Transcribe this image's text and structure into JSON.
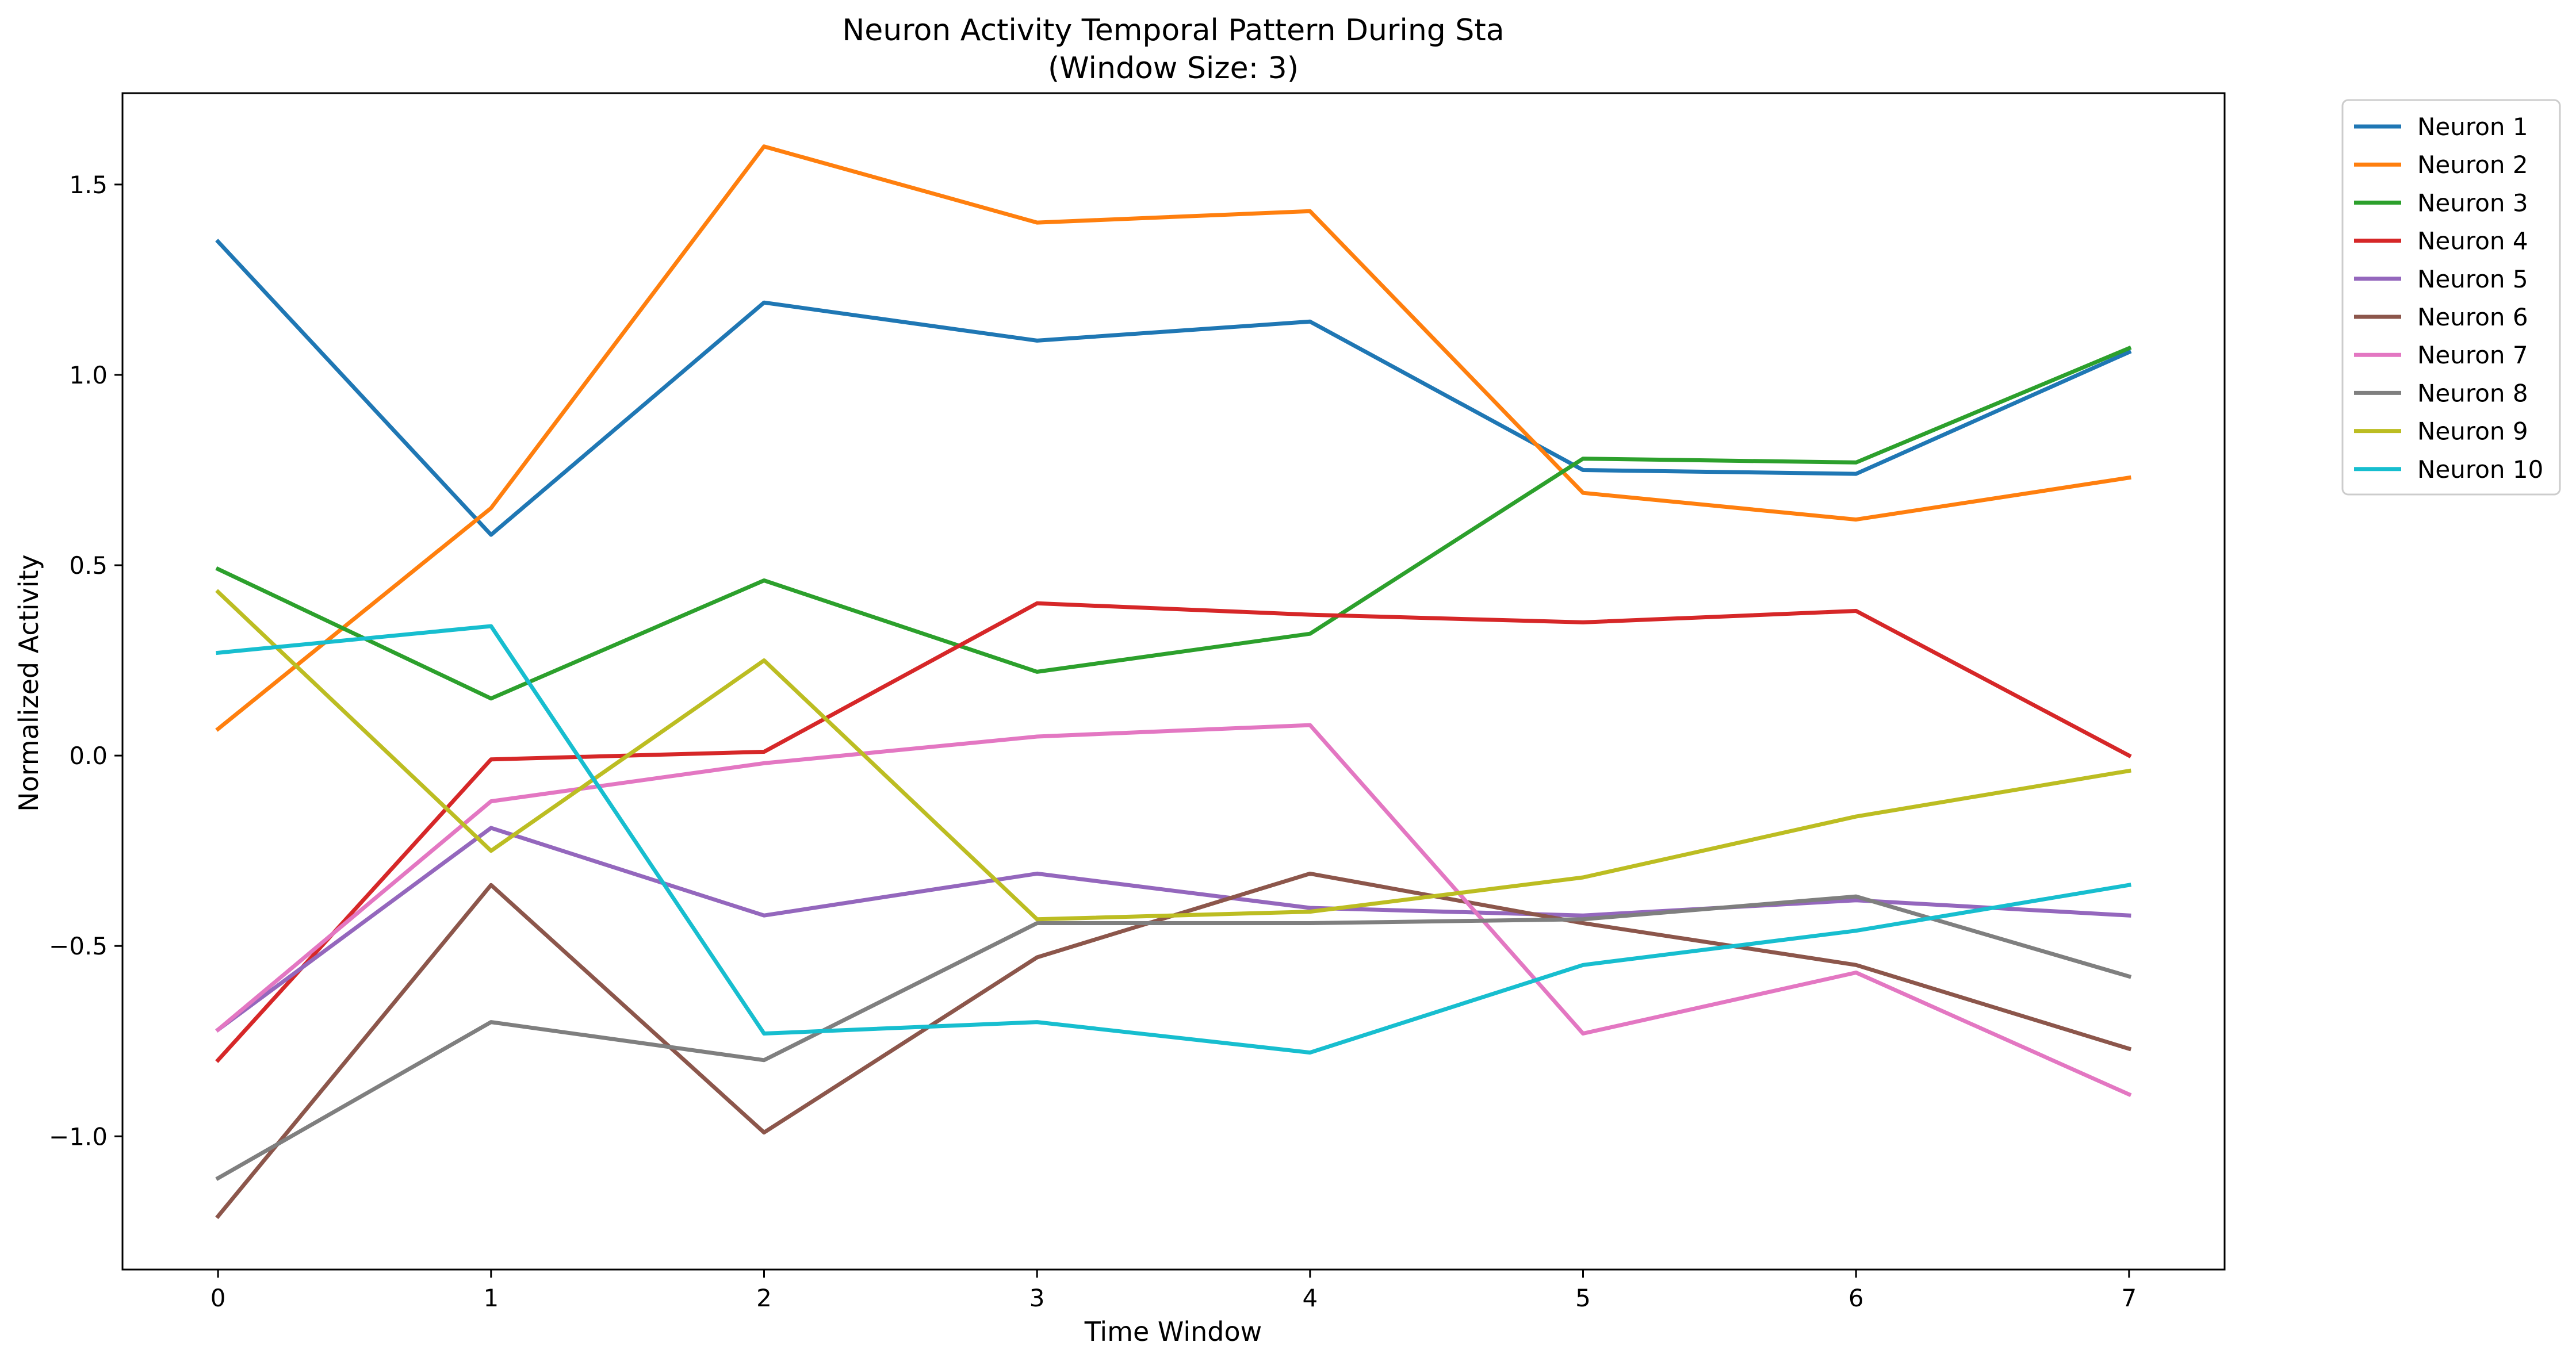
{
  "chart_data": {
    "type": "line",
    "title": "Neuron Activity Temporal Pattern During Sta",
    "subtitle": "(Window Size: 3)",
    "xlabel": "Time Window",
    "ylabel": "Normalized Activity",
    "x": [
      0,
      1,
      2,
      3,
      4,
      5,
      6,
      7
    ],
    "xticks": [
      "0",
      "1",
      "2",
      "3",
      "4",
      "5",
      "6",
      "7"
    ],
    "yticks": [
      -1.0,
      -0.5,
      0.0,
      0.5,
      1.0,
      1.5
    ],
    "ytick_labels": [
      "−1.0",
      "−0.5",
      "0.0",
      "0.5",
      "1.0",
      "1.5"
    ],
    "xlim": [
      -0.35,
      7.35
    ],
    "ylim": [
      -1.35,
      1.74
    ],
    "grid": false,
    "legend_position": "outside-top-right",
    "series": [
      {
        "name": "Neuron 1",
        "color": "#1f77b4",
        "values": [
          1.35,
          0.58,
          1.19,
          1.09,
          1.14,
          0.75,
          0.74,
          1.06
        ]
      },
      {
        "name": "Neuron 2",
        "color": "#ff7f0e",
        "values": [
          0.07,
          0.65,
          1.6,
          1.4,
          1.43,
          0.69,
          0.62,
          0.73
        ]
      },
      {
        "name": "Neuron 3",
        "color": "#2ca02c",
        "values": [
          0.49,
          0.15,
          0.46,
          0.22,
          0.32,
          0.78,
          0.77,
          1.07
        ]
      },
      {
        "name": "Neuron 4",
        "color": "#d62728",
        "values": [
          -0.8,
          -0.01,
          0.01,
          0.4,
          0.37,
          0.35,
          0.38,
          0.0
        ]
      },
      {
        "name": "Neuron 5",
        "color": "#9467bd",
        "values": [
          -0.72,
          -0.19,
          -0.42,
          -0.31,
          -0.4,
          -0.42,
          -0.38,
          -0.42
        ]
      },
      {
        "name": "Neuron 6",
        "color": "#8c564b",
        "values": [
          -1.21,
          -0.34,
          -0.99,
          -0.53,
          -0.31,
          -0.44,
          -0.55,
          -0.77
        ]
      },
      {
        "name": "Neuron 7",
        "color": "#e377c2",
        "values": [
          -0.72,
          -0.12,
          -0.02,
          0.05,
          0.08,
          -0.73,
          -0.57,
          -0.89
        ]
      },
      {
        "name": "Neuron 8",
        "color": "#7f7f7f",
        "values": [
          -1.11,
          -0.7,
          -0.8,
          -0.44,
          -0.44,
          -0.43,
          -0.37,
          -0.58
        ]
      },
      {
        "name": "Neuron 9",
        "color": "#bcbd22",
        "values": [
          0.43,
          -0.25,
          0.25,
          -0.43,
          -0.41,
          -0.32,
          -0.16,
          -0.04
        ]
      },
      {
        "name": "Neuron 10",
        "color": "#17becf",
        "values": [
          0.27,
          0.34,
          -0.73,
          -0.7,
          -0.78,
          -0.55,
          -0.46,
          -0.34
        ]
      }
    ]
  }
}
